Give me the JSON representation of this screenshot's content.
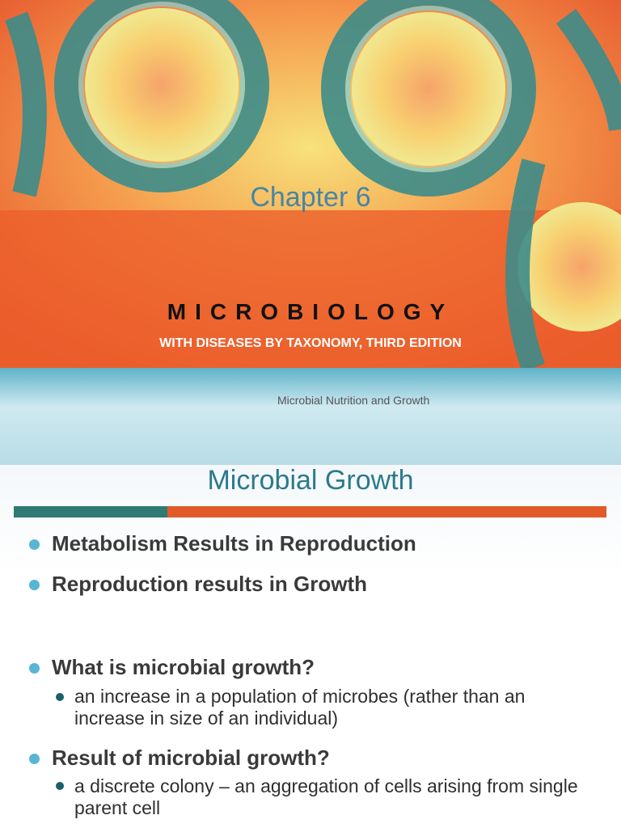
{
  "slides": [
    {
      "chapter": "Chapter 6",
      "title": "MICROBIOLOGY",
      "subtitle": "WITH DISEASES BY TAXONOMY, THIRD EDITION",
      "caption": "Microbial Nutrition and Growth"
    },
    {
      "title": "Microbial Growth",
      "bullets": [
        {
          "text": "Metabolism Results in Reproduction"
        },
        {
          "text": "Reproduction results in Growth"
        },
        {
          "text": "What is microbial growth?",
          "sub": [
            "an increase in a population of microbes (rather than an increase in size of an individual)"
          ]
        },
        {
          "text": "Result of microbial growth?",
          "sub": [
            "a discrete colony – an aggregation of cells arising from single parent cell"
          ]
        }
      ]
    }
  ]
}
